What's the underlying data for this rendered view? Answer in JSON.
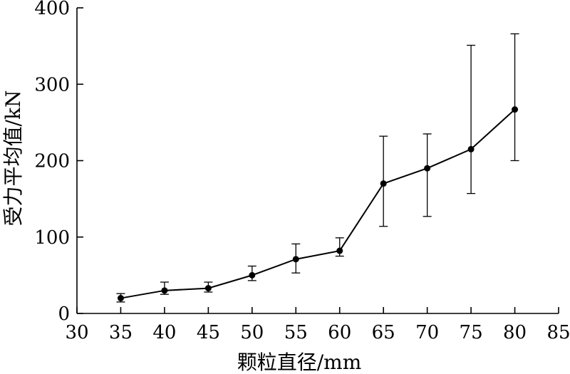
{
  "chart_data": {
    "type": "line",
    "title": "",
    "xlabel": "颗粒直径/mm",
    "ylabel": "受力平均值/kN",
    "xlim": [
      30,
      85
    ],
    "ylim": [
      0,
      400
    ],
    "xticks": [
      30,
      35,
      40,
      45,
      50,
      55,
      60,
      65,
      70,
      75,
      80,
      85
    ],
    "yticks": [
      0,
      100,
      200,
      300,
      400
    ],
    "grid": false,
    "legend": "none",
    "colors": {
      "line": "#000000",
      "marker": "#000000",
      "axis": "#000000"
    },
    "series": [
      {
        "name": "受力平均值",
        "x": [
          35,
          40,
          45,
          50,
          55,
          60,
          65,
          70,
          75,
          80
        ],
        "y": [
          20,
          30,
          33,
          50,
          71,
          82,
          170,
          190,
          215,
          267
        ],
        "error_lower": [
          15,
          25,
          28,
          43,
          53,
          75,
          114,
          127,
          157,
          200
        ],
        "error_upper": [
          26,
          41,
          41,
          62,
          91,
          99,
          232,
          235,
          351,
          366
        ]
      }
    ]
  }
}
